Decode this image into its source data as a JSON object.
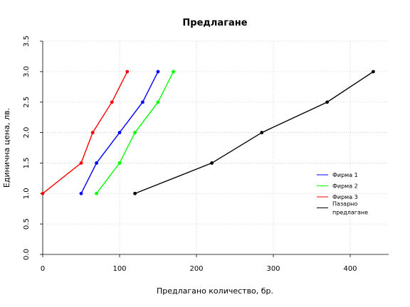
{
  "chart_data": {
    "type": "line",
    "title": "Предлагане",
    "xlabel": "Предлагано количество, бр.",
    "ylabel": "Единична цена, лв.",
    "xlim": [
      0,
      450
    ],
    "ylim": [
      0,
      3.5
    ],
    "x_ticks": [
      "0",
      "100",
      "200",
      "300",
      "400"
    ],
    "y_ticks": [
      "0.0",
      "0.5",
      "1.0",
      "1.5",
      "2.0",
      "2.5",
      "3.0",
      "3.5"
    ],
    "grid": true,
    "legend_position": "right",
    "series": [
      {
        "name": "Фирма 1",
        "color": "#0000ff",
        "points": [
          [
            50,
            1.0
          ],
          [
            70,
            1.5
          ],
          [
            100,
            2.0
          ],
          [
            130,
            2.5
          ],
          [
            150,
            3.0
          ]
        ]
      },
      {
        "name": "Фирма 2",
        "color": "#00ff00",
        "points": [
          [
            70,
            1.0
          ],
          [
            100,
            1.5
          ],
          [
            120,
            2.0
          ],
          [
            150,
            2.5
          ],
          [
            170,
            3.0
          ]
        ]
      },
      {
        "name": "Фирма 3",
        "color": "#ff0000",
        "points": [
          [
            0,
            1.0
          ],
          [
            50,
            1.5
          ],
          [
            65,
            2.0
          ],
          [
            90,
            2.5
          ],
          [
            110,
            3.0
          ]
        ]
      },
      {
        "name": "Пазарно предлагане",
        "color": "#000000",
        "points": [
          [
            120,
            1.0
          ],
          [
            220,
            1.5
          ],
          [
            285,
            2.0
          ],
          [
            370,
            2.5
          ],
          [
            430,
            3.0
          ]
        ]
      }
    ]
  }
}
